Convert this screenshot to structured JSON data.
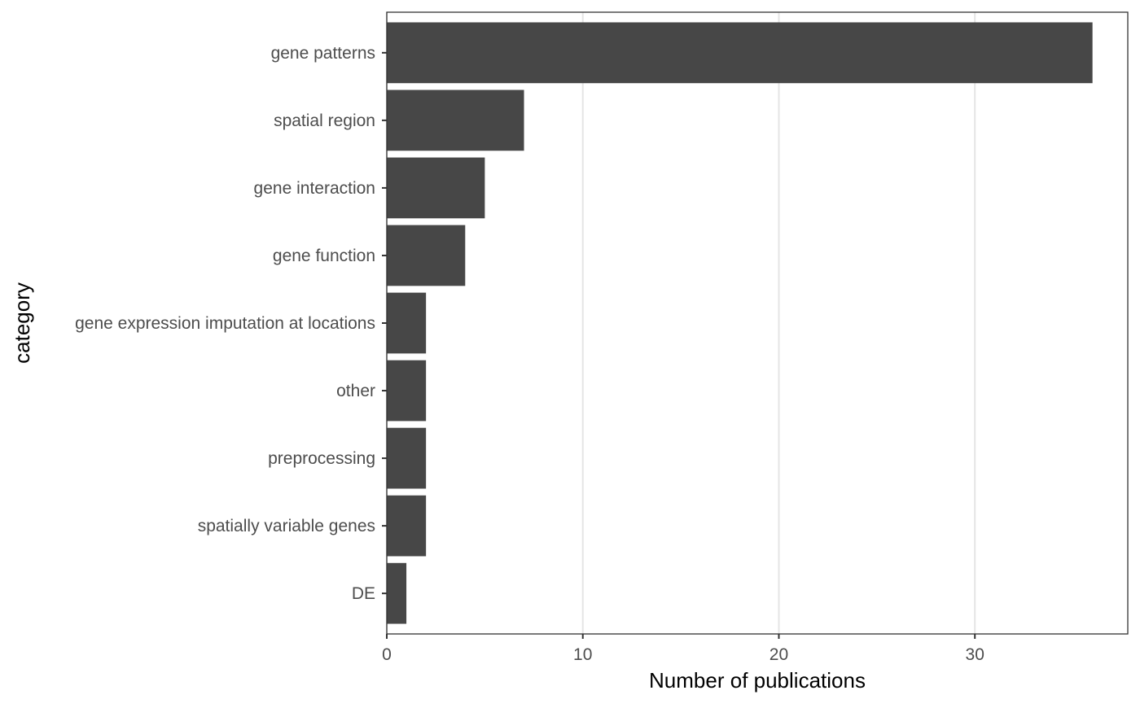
{
  "chart_data": {
    "type": "bar",
    "orientation": "horizontal",
    "categories": [
      "gene patterns",
      "spatial region",
      "gene interaction",
      "gene function",
      "gene expression imputation at locations",
      "other",
      "preprocessing",
      "spatially variable genes",
      "DE"
    ],
    "values": [
      36,
      7,
      5,
      4,
      2,
      2,
      2,
      2,
      1
    ],
    "xlabel": "Number of publications",
    "ylabel": "category",
    "xlim": [
      0,
      37.8
    ],
    "x_ticks": [
      0,
      10,
      20,
      30
    ],
    "x_tick_labels": [
      "0",
      "10",
      "20",
      "30"
    ],
    "grid": true,
    "legend": "none",
    "bar_color": "#474747",
    "grid_color": "#e5e5e5",
    "panel_border_color": "#333333"
  }
}
